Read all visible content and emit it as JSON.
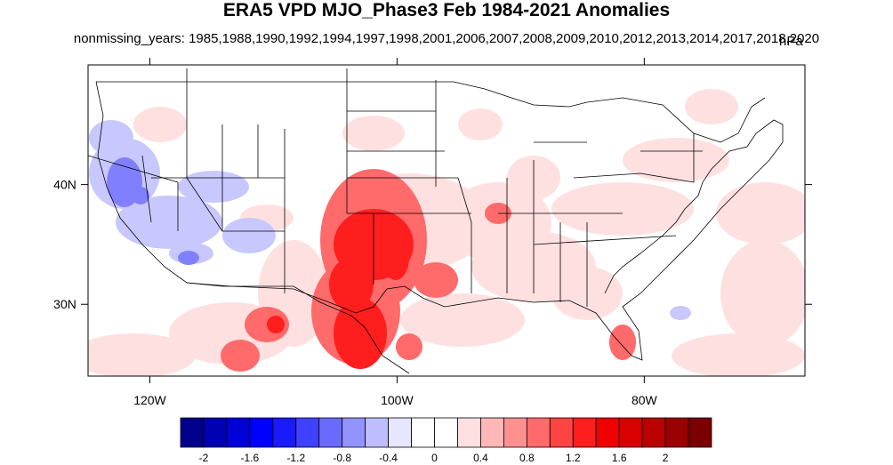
{
  "title": "ERA5 VPD MJO_Phase3 Feb 1984-2021 Anomalies",
  "subtitle": "nonmissing_years: 1985,1988,1990,1992,1994,1997,1998,2001,2006,2007,2008,2009,2010,2012,2013,2014,2017,2018,2020",
  "units": "hPa",
  "map": {
    "lon_range": [
      -125,
      -67
    ],
    "lat_range": [
      24,
      50
    ],
    "x_ticks": [
      {
        "lon": -120,
        "label": "120W"
      },
      {
        "lon": -100,
        "label": "100W"
      },
      {
        "lon": -80,
        "label": "80W"
      }
    ],
    "y_ticks": [
      {
        "lat": 40,
        "label": "40N"
      },
      {
        "lat": 30,
        "label": "30N"
      }
    ]
  },
  "colorbar": {
    "colors": [
      "#00008b",
      "#0000b3",
      "#0000d9",
      "#0000ff",
      "#1a1aff",
      "#4040ff",
      "#6a6aff",
      "#9393ff",
      "#bdbdff",
      "#e6e6ff",
      "#ffffff",
      "#ffffff",
      "#ffe0e0",
      "#ffb7b7",
      "#ff9090",
      "#ff6a6a",
      "#ff4444",
      "#ff1e1e",
      "#f00000",
      "#d90000",
      "#bb0000",
      "#9b0000",
      "#7a0000"
    ],
    "labels": [
      "-2",
      "-1.6",
      "-1.2",
      "-0.8",
      "-0.4",
      "0",
      "0.4",
      "0.8",
      "1.2",
      "1.6",
      "2"
    ]
  },
  "anomaly_colors": {
    "strong_positive": "#ff1e1e",
    "moderate_positive": "#ff6a6a",
    "weak_positive": "#ffe0e0",
    "weak_negative": "#c8c8ff",
    "moderate_negative": "#8080ff"
  }
}
